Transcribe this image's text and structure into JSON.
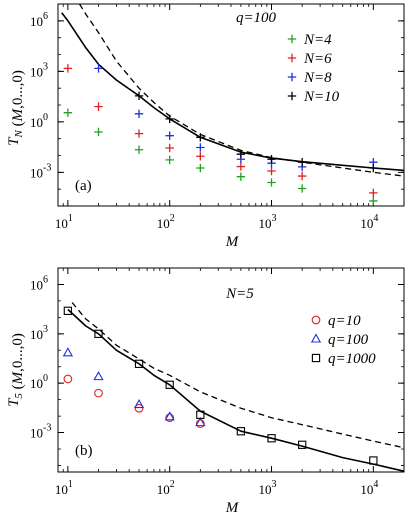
{
  "chart_data": [
    {
      "type": "scatter",
      "panel_label": "(a)",
      "title": "q=100",
      "xlabel": "M",
      "ylabel": "T_N (M,0...,0)",
      "xscale": "log",
      "yscale": "log",
      "xlim": [
        8,
        20000
      ],
      "ylim": [
        1e-05,
        10000000
      ],
      "xticks": [
        {
          "value": 10,
          "label": "10",
          "exp": "1"
        },
        {
          "value": 100,
          "label": "10",
          "exp": "2"
        },
        {
          "value": 1000,
          "label": "10",
          "exp": "3"
        },
        {
          "value": 10000,
          "label": "10",
          "exp": "4"
        }
      ],
      "yticks": [
        {
          "value": 0.001,
          "label": "10",
          "exp": "-3"
        },
        {
          "value": 1,
          "label": "10",
          "exp": "0"
        },
        {
          "value": 1000,
          "label": "10",
          "exp": "3"
        },
        {
          "value": 1000000,
          "label": "10",
          "exp": "6"
        }
      ],
      "legend_position": "top-right",
      "series": [
        {
          "name": "N=4",
          "marker": "plus",
          "color": "#22a022",
          "x": [
            10,
            20,
            50,
            100,
            200,
            500,
            1000,
            2000,
            10000
          ],
          "y": [
            3.5,
            0.25,
            0.022,
            0.0055,
            0.0018,
            0.00055,
            0.00025,
            0.00011,
            2e-05
          ]
        },
        {
          "name": "N=6",
          "marker": "plus",
          "color": "#e02020",
          "x": [
            10,
            20,
            50,
            100,
            200,
            500,
            1000,
            2000,
            10000
          ],
          "y": [
            1500,
            8,
            0.2,
            0.028,
            0.009,
            0.0022,
            0.0012,
            0.0006,
            6e-05
          ]
        },
        {
          "name": "N=8",
          "marker": "plus",
          "color": "#2030e0",
          "x": [
            10,
            20,
            50,
            100,
            200,
            500,
            1000,
            2000,
            10000
          ],
          "y": [
            null,
            1500,
            3.0,
            0.15,
            0.03,
            0.006,
            0.0035,
            0.0021,
            0.004
          ]
        },
        {
          "name": "N=10",
          "marker": "plus",
          "color": "#000000",
          "x": [
            50,
            100,
            200,
            500,
            1000,
            2000,
            10000
          ],
          "y": [
            35,
            1.5,
            0.12,
            0.012,
            0.006,
            0.004,
            0.0018
          ]
        }
      ],
      "curves": [
        {
          "style": "solid",
          "x": [
            8.7,
            10,
            15,
            20,
            30,
            50,
            70,
            100,
            200,
            500,
            1000,
            2000,
            5000,
            10000,
            20000
          ],
          "y": [
            3000000,
            1000000,
            25000,
            2600,
            300,
            35,
            7,
            1.5,
            0.12,
            0.016,
            0.007,
            0.0043,
            0.0026,
            0.0018,
            0.0013
          ]
        },
        {
          "style": "dashed",
          "x": [
            13,
            15,
            20,
            30,
            50,
            70,
            100,
            200,
            500,
            1000,
            2000,
            5000,
            10000,
            20000
          ],
          "y": [
            10000000,
            2500000,
            200000,
            4000,
            100,
            14,
            2.2,
            0.18,
            0.02,
            0.0075,
            0.004,
            0.0018,
            0.001,
            0.0006
          ]
        }
      ]
    },
    {
      "type": "scatter",
      "panel_label": "(b)",
      "title": "N=5",
      "xlabel": "M",
      "ylabel": "T_5 (M,0...,0)",
      "xscale": "log",
      "yscale": "log",
      "xlim": [
        8,
        20000
      ],
      "ylim": [
        4e-06,
        10000000
      ],
      "xticks": [
        {
          "value": 10,
          "label": "10",
          "exp": "1"
        },
        {
          "value": 100,
          "label": "10",
          "exp": "2"
        },
        {
          "value": 1000,
          "label": "10",
          "exp": "3"
        },
        {
          "value": 10000,
          "label": "10",
          "exp": "4"
        }
      ],
      "yticks": [
        {
          "value": 0.001,
          "label": "10",
          "exp": "-3"
        },
        {
          "value": 1,
          "label": "10",
          "exp": "0"
        },
        {
          "value": 1000,
          "label": "10",
          "exp": "3"
        },
        {
          "value": 1000000,
          "label": "10",
          "exp": "6"
        }
      ],
      "legend_position": "top-right",
      "series": [
        {
          "name": "q=10",
          "marker": "circle",
          "color": "#e02020",
          "x": [
            10,
            20,
            50,
            100,
            200
          ],
          "y": [
            1.8,
            0.25,
            0.03,
            0.008,
            0.0035
          ]
        },
        {
          "name": "q=100",
          "marker": "triangle",
          "color": "#2030e0",
          "x": [
            10,
            20,
            50,
            100,
            200
          ],
          "y": [
            70,
            2.5,
            0.05,
            0.009,
            0.004
          ]
        },
        {
          "name": "q=1000",
          "marker": "square",
          "color": "#000000",
          "x": [
            10,
            20,
            50,
            100,
            200,
            500,
            1000,
            2000,
            10000
          ],
          "y": [
            25000,
            1000,
            15,
            0.8,
            0.012,
            0.0012,
            0.00045,
            0.00018,
            2e-05
          ]
        }
      ],
      "curves": [
        {
          "style": "solid",
          "x": [
            10,
            15,
            20,
            30,
            50,
            70,
            100,
            200,
            500,
            1000,
            2000,
            5000,
            10000,
            20000
          ],
          "y": [
            30000,
            3000,
            1000,
            100,
            15,
            3,
            0.8,
            0.02,
            0.0012,
            0.00045,
            0.00015,
            3e-05,
            1.2e-05,
            4.5e-06
          ]
        },
        {
          "style": "dashed",
          "x": [
            11,
            15,
            20,
            30,
            50,
            70,
            100,
            200,
            500,
            1000,
            2000,
            5000,
            10000,
            20000
          ],
          "y": [
            80000,
            8000,
            2000,
            200,
            30,
            8,
            3,
            0.3,
            0.03,
            0.008,
            0.003,
            0.0008,
            0.0003,
            0.00012
          ]
        }
      ]
    }
  ]
}
